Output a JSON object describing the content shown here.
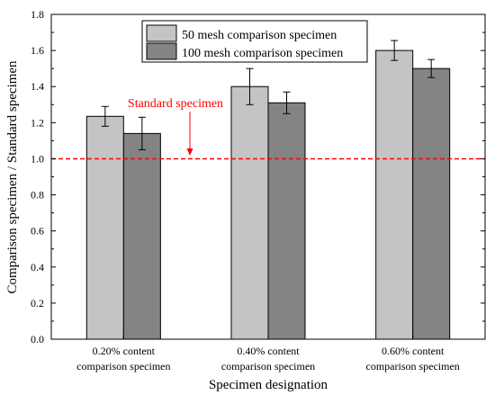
{
  "chart_data": {
    "type": "bar",
    "xlabel": "Specimen designation",
    "ylabel": "Comparison specimen / Standard specimen",
    "ylim": [
      0,
      1.8
    ],
    "yticks": [
      "0.0",
      "0.2",
      "0.4",
      "0.6",
      "0.8",
      "1.0",
      "1.2",
      "1.4",
      "1.6",
      "1.8"
    ],
    "categories": [
      [
        "0.20% content",
        "comparison specimen"
      ],
      [
        "0.40% content",
        "comparison specimen"
      ],
      [
        "0.60% content",
        "comparison specimen"
      ]
    ],
    "series": [
      {
        "name": "50 mesh comparison specimen",
        "values": [
          1.235,
          1.4,
          1.6
        ],
        "errors": [
          0.055,
          0.1,
          0.055
        ],
        "color": "#c4c4c4"
      },
      {
        "name": "100 mesh comparison specimen",
        "values": [
          1.14,
          1.31,
          1.5
        ],
        "errors": [
          0.09,
          0.06,
          0.05
        ],
        "color": "#848484"
      }
    ],
    "reference_line": {
      "value": 1.0,
      "color": "#ff0000",
      "style": "dashed"
    },
    "annotation": {
      "text": "Standard specimen",
      "color": "#ff0000",
      "arrow_to": 1.0
    },
    "legend_position": "top-center",
    "grid": false
  }
}
